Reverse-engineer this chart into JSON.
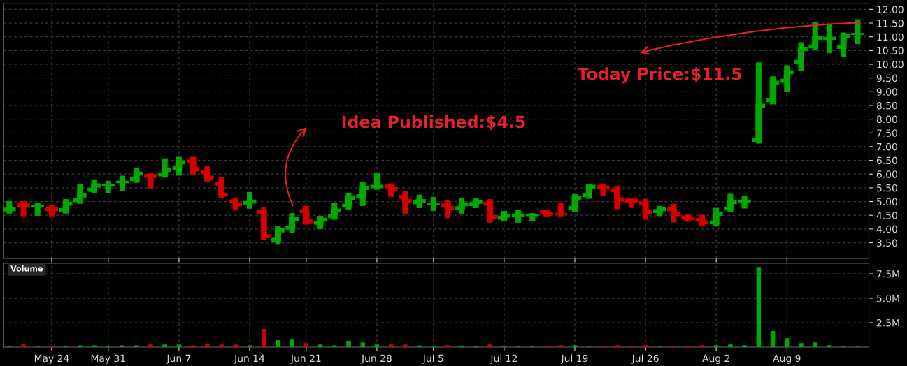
{
  "chart_data": [
    {
      "type": "candlestick",
      "categories": [
        null,
        null,
        null,
        null,
        null,
        null,
        null,
        null,
        null,
        null,
        null,
        null,
        null,
        null,
        null,
        null,
        null,
        null,
        null,
        null,
        null,
        null,
        null,
        null,
        null,
        null,
        null,
        null,
        null,
        null,
        null,
        null,
        null,
        null,
        null,
        null,
        null,
        null,
        null,
        null,
        null,
        null,
        null,
        null,
        null,
        null,
        null,
        null,
        null,
        null,
        null,
        null,
        null,
        null,
        null,
        null,
        null,
        null,
        null,
        null,
        null
      ],
      "ohlc": [
        [
          4.66,
          5.02,
          4.56,
          4.77
        ],
        [
          4.92,
          5.02,
          4.46,
          4.81
        ],
        [
          4.81,
          4.94,
          4.48,
          4.85
        ],
        [
          4.77,
          4.86,
          4.46,
          4.67
        ],
        [
          4.64,
          5.09,
          4.56,
          4.97
        ],
        [
          5.0,
          5.63,
          4.92,
          5.27
        ],
        [
          5.38,
          5.81,
          5.3,
          5.64
        ],
        [
          5.59,
          5.76,
          5.3,
          5.61
        ],
        [
          5.69,
          5.94,
          5.38,
          5.74
        ],
        [
          5.77,
          6.24,
          5.68,
          6.07
        ],
        [
          5.98,
          6.04,
          5.48,
          5.89
        ],
        [
          5.94,
          6.57,
          5.87,
          6.2
        ],
        [
          6.17,
          6.63,
          5.94,
          6.48
        ],
        [
          6.51,
          6.63,
          5.99,
          6.12
        ],
        [
          6.12,
          6.29,
          5.73,
          5.82
        ],
        [
          5.69,
          5.89,
          5.12,
          5.2
        ],
        [
          5.05,
          5.14,
          4.69,
          4.85
        ],
        [
          4.9,
          5.35,
          4.74,
          5.05
        ],
        [
          4.67,
          4.81,
          3.59,
          3.69
        ],
        [
          3.56,
          4.1,
          3.43,
          4.0
        ],
        [
          4.0,
          4.58,
          3.87,
          4.41
        ],
        [
          4.7,
          4.84,
          4.16,
          4.23
        ],
        [
          4.18,
          4.48,
          4.0,
          4.39
        ],
        [
          4.42,
          4.94,
          4.34,
          4.72
        ],
        [
          4.8,
          5.32,
          4.71,
          5.18
        ],
        [
          5.15,
          5.71,
          4.84,
          5.54
        ],
        [
          5.51,
          6.04,
          5.43,
          5.59
        ],
        [
          5.6,
          5.66,
          5.17,
          5.41
        ],
        [
          5.22,
          5.37,
          4.56,
          4.97
        ],
        [
          4.93,
          5.25,
          4.76,
          5.07
        ],
        [
          4.89,
          5.17,
          4.66,
          4.91
        ],
        [
          4.91,
          5.04,
          4.4,
          4.71
        ],
        [
          4.71,
          5.12,
          4.56,
          4.95
        ],
        [
          4.86,
          5.12,
          4.76,
          5.04
        ],
        [
          4.97,
          5.09,
          4.23,
          4.39
        ],
        [
          4.36,
          4.66,
          4.28,
          4.54
        ],
        [
          4.46,
          4.71,
          4.23,
          4.54
        ],
        [
          4.49,
          4.58,
          4.28,
          4.51
        ],
        [
          4.66,
          4.71,
          4.43,
          4.51
        ],
        [
          4.57,
          4.97,
          4.46,
          4.54
        ],
        [
          4.72,
          5.27,
          4.63,
          5.17
        ],
        [
          5.18,
          5.65,
          5.1,
          5.59
        ],
        [
          5.59,
          5.65,
          5.2,
          5.46
        ],
        [
          5.46,
          5.57,
          4.72,
          5.03
        ],
        [
          5.08,
          5.13,
          4.77,
          4.98
        ],
        [
          4.98,
          5.1,
          4.34,
          4.57
        ],
        [
          4.6,
          4.84,
          4.47,
          4.77
        ],
        [
          4.77,
          4.92,
          4.24,
          4.49
        ],
        [
          4.47,
          4.54,
          4.26,
          4.34
        ],
        [
          4.39,
          4.52,
          4.09,
          4.19
        ],
        [
          4.19,
          4.77,
          4.11,
          4.6
        ],
        [
          4.7,
          5.28,
          4.62,
          5.03
        ],
        [
          4.98,
          5.21,
          4.75,
          5.05
        ],
        [
          7.19,
          10.07,
          7.11,
          8.54
        ],
        [
          8.64,
          9.56,
          8.54,
          9.38
        ],
        [
          9.35,
          9.96,
          8.99,
          9.76
        ],
        [
          10.04,
          10.8,
          9.76,
          10.6
        ],
        [
          10.6,
          11.54,
          10.52,
          11.01
        ],
        [
          10.91,
          11.47,
          10.4,
          10.98
        ],
        [
          10.58,
          11.16,
          10.27,
          11.08
        ],
        [
          11.09,
          11.64,
          10.73,
          11.12
        ]
      ],
      "colors": [
        "#00a800",
        "#d40000",
        "#00a800",
        "#d40000",
        "#00a800",
        "#00a800",
        "#00a800",
        "#00a800",
        "#00a800",
        "#00a800",
        "#d40000",
        "#00a800",
        "#00a800",
        "#d40000",
        "#d40000",
        "#d40000",
        "#d40000",
        "#00a800",
        "#d40000",
        "#00a800",
        "#00a800",
        "#d40000",
        "#00a800",
        "#00a800",
        "#00a800",
        "#00a800",
        "#00a800",
        "#d40000",
        "#d40000",
        "#00a800",
        "#00a800",
        "#d40000",
        "#00a800",
        "#00a800",
        "#d40000",
        "#00a800",
        "#00a800",
        "#00a800",
        "#d40000",
        "#d40000",
        "#00a800",
        "#00a800",
        "#d40000",
        "#d40000",
        "#d40000",
        "#d40000",
        "#00a800",
        "#d40000",
        "#d40000",
        "#d40000",
        "#00a800",
        "#00a800",
        "#00a800",
        "#00a800",
        "#00a800",
        "#00a800",
        "#00a800",
        "#00a800",
        "#00a800",
        "#00a800",
        "#00a800"
      ],
      "ylim": [
        2.93,
        12.22
      ],
      "yticks": [
        {
          "value": 3.5,
          "label": "3.50"
        },
        {
          "value": 4,
          "label": "4.00"
        },
        {
          "value": 4.5,
          "label": "4.50"
        },
        {
          "value": 5,
          "label": "5.00"
        },
        {
          "value": 5.5,
          "label": "5.50"
        },
        {
          "value": 6,
          "label": "6.00"
        },
        {
          "value": 6.5,
          "label": "6.50"
        },
        {
          "value": 7,
          "label": "7.00"
        },
        {
          "value": 7.5,
          "label": "7.50"
        },
        {
          "value": 8,
          "label": "8.00"
        },
        {
          "value": 8.5,
          "label": "8.50"
        },
        {
          "value": 9,
          "label": "9.00"
        },
        {
          "value": 9.5,
          "label": "9.50"
        },
        {
          "value": 10,
          "label": "10.00"
        },
        {
          "value": 10.5,
          "label": "10.50"
        },
        {
          "value": 11,
          "label": "11.00"
        },
        {
          "value": 11.5,
          "label": "11.50"
        },
        {
          "value": 12,
          "label": "12.00"
        }
      ],
      "grid": true,
      "annotations": [
        "Idea Published:$4.5",
        "Today Price:$11.5"
      ]
    },
    {
      "type": "bar",
      "title": "Volume",
      "categories": [
        null,
        null,
        null,
        "May 24",
        null,
        null,
        null,
        "May 31",
        null,
        null,
        null,
        null,
        "Jun 7",
        null,
        null,
        null,
        null,
        "Jun 14",
        null,
        null,
        null,
        "Jun 21",
        null,
        null,
        null,
        null,
        "Jun 28",
        null,
        null,
        null,
        "Jul 5",
        null,
        null,
        null,
        null,
        "Jul 12",
        null,
        null,
        null,
        null,
        "Jul 19",
        null,
        null,
        null,
        null,
        "Jul 26",
        null,
        null,
        null,
        null,
        "Aug 2",
        null,
        null,
        null,
        null,
        "Aug 9",
        null,
        null,
        null,
        null,
        null
      ],
      "values": [
        0.12,
        0.27,
        0.06,
        0.12,
        0.12,
        0.18,
        0.18,
        0.12,
        0.18,
        0.18,
        0.27,
        0.27,
        0.27,
        0.18,
        0.33,
        0.27,
        0.27,
        0.18,
        1.85,
        0.71,
        0.77,
        0.42,
        0.27,
        0.18,
        0.65,
        0.48,
        0.27,
        0.27,
        0.27,
        0.18,
        0.06,
        0.2,
        0.12,
        0.12,
        0.27,
        0.06,
        0.12,
        0.12,
        0.06,
        0.2,
        0.2,
        0.06,
        0.12,
        0.2,
        0.06,
        0.2,
        0.06,
        0.12,
        0.12,
        0.2,
        0.2,
        0.27,
        0.2,
        8.2,
        1.64,
        0.92,
        0.42,
        0.48,
        0.2,
        0.12,
        0.06
      ],
      "colors": [
        "#00a800",
        "#d40000",
        "#00a800",
        "#d40000",
        "#00a800",
        "#00a800",
        "#00a800",
        "#00a800",
        "#00a800",
        "#00a800",
        "#d40000",
        "#00a800",
        "#00a800",
        "#d40000",
        "#d40000",
        "#d40000",
        "#d40000",
        "#00a800",
        "#d40000",
        "#00a800",
        "#00a800",
        "#d40000",
        "#00a800",
        "#00a800",
        "#00a800",
        "#00a800",
        "#00a800",
        "#d40000",
        "#d40000",
        "#00a800",
        "#00a800",
        "#d40000",
        "#00a800",
        "#00a800",
        "#d40000",
        "#00a800",
        "#00a800",
        "#00a800",
        "#d40000",
        "#d40000",
        "#00a800",
        "#00a800",
        "#d40000",
        "#d40000",
        "#d40000",
        "#d40000",
        "#00a800",
        "#d40000",
        "#d40000",
        "#d40000",
        "#00a800",
        "#00a800",
        "#00a800",
        "#00a800",
        "#00a800",
        "#00a800",
        "#00a800",
        "#00a800",
        "#00a800",
        "#00a800",
        "#00a800"
      ],
      "ylim": [
        0,
        8.57
      ],
      "yticks": [
        {
          "value": 2.5,
          "label": "2.5M"
        },
        {
          "value": 5,
          "label": "5.0M"
        },
        {
          "value": 7.5,
          "label": "7.5M"
        }
      ],
      "grid": true
    }
  ]
}
